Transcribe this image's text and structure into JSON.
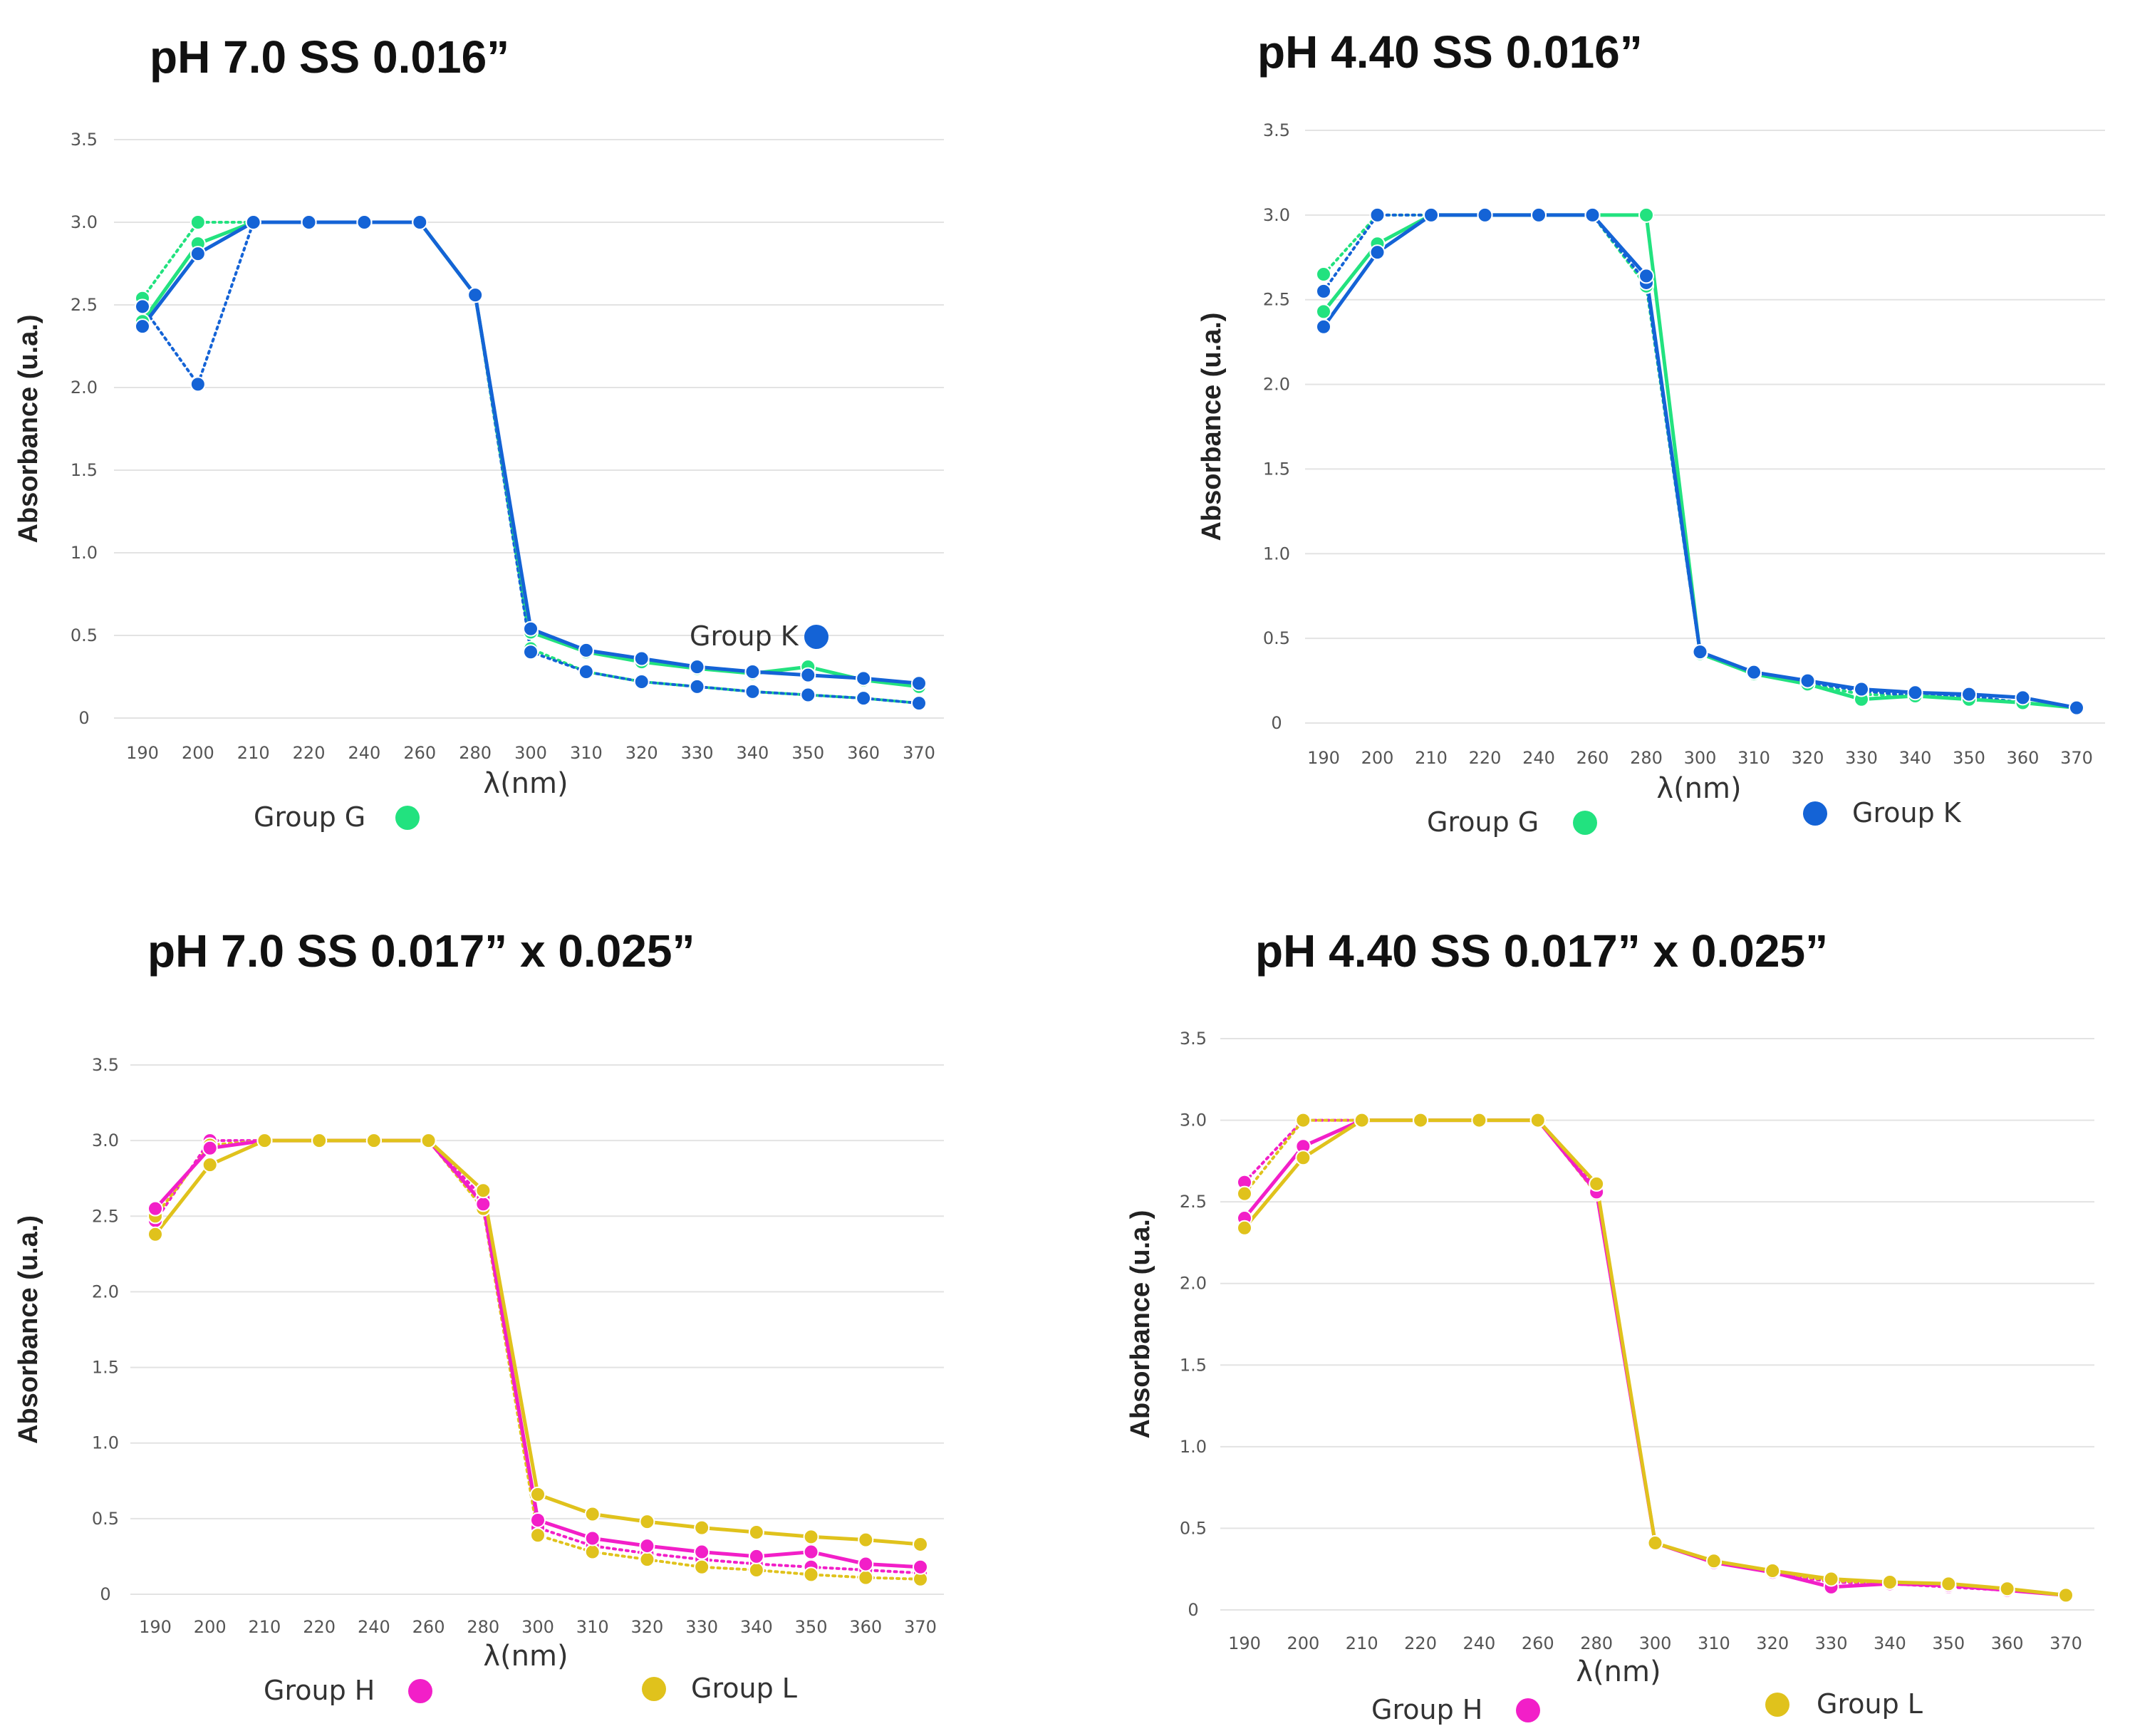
{
  "chart_data": [
    {
      "type": "line",
      "title": "pH 7.0 SS 0.016”",
      "xlabel": "λ(nm)",
      "ylabel": "Absorbance (u.a.)",
      "ylim": [
        0,
        3.5
      ],
      "y_ticks": [
        "0",
        "0.5",
        "1.0",
        "1.5",
        "2.0",
        "2.5",
        "3.0",
        "3.5"
      ],
      "categories": [
        "190",
        "200",
        "210",
        "220",
        "240",
        "260",
        "280",
        "300",
        "310",
        "320",
        "330",
        "340",
        "350",
        "360",
        "370"
      ],
      "legend": [
        {
          "label": "Group G",
          "color": "#22e27f"
        },
        {
          "label": "Group K",
          "color": "#1463d6"
        }
      ],
      "series": [
        {
          "name": "Group G",
          "style": "solid",
          "color": "#22e27f",
          "values": [
            2.4,
            2.87,
            3.0,
            3.0,
            3.0,
            3.0,
            2.56,
            0.52,
            0.4,
            0.34,
            0.3,
            0.27,
            0.31,
            0.23,
            0.19
          ]
        },
        {
          "name": "Group G",
          "style": "dotted",
          "color": "#22e27f",
          "values": [
            2.54,
            3.0,
            3.0,
            3.0,
            3.0,
            3.0,
            2.56,
            0.42,
            0.28,
            0.22,
            0.19,
            0.16,
            0.14,
            0.12,
            0.09
          ]
        },
        {
          "name": "Group K",
          "style": "solid",
          "color": "#1463d6",
          "values": [
            2.37,
            2.81,
            3.0,
            3.0,
            3.0,
            3.0,
            2.56,
            0.54,
            0.41,
            0.36,
            0.31,
            0.28,
            0.26,
            0.24,
            0.21
          ]
        },
        {
          "name": "Group K",
          "style": "dotted",
          "color": "#1463d6",
          "values": [
            2.49,
            2.02,
            3.0,
            3.0,
            3.0,
            3.0,
            2.56,
            0.4,
            0.28,
            0.22,
            0.19,
            0.16,
            0.14,
            0.12,
            0.09
          ]
        }
      ]
    },
    {
      "type": "line",
      "title": "pH 4.40 SS 0.016”",
      "xlabel": "λ(nm)",
      "ylabel": "Absorbance (u.a.)",
      "ylim": [
        0,
        3.5
      ],
      "y_ticks": [
        "0",
        "0.5",
        "1.0",
        "1.5",
        "2.0",
        "2.5",
        "3.0",
        "3.5"
      ],
      "categories": [
        "190",
        "200",
        "210",
        "220",
        "240",
        "260",
        "280",
        "300",
        "310",
        "320",
        "330",
        "340",
        "350",
        "360",
        "370"
      ],
      "legend": [
        {
          "label": "Group G",
          "color": "#22e27f"
        },
        {
          "label": "Group K",
          "color": "#1463d6"
        }
      ],
      "series": [
        {
          "name": "Group G",
          "style": "solid",
          "color": "#22e27f",
          "values": [
            2.43,
            2.83,
            3.0,
            3.0,
            3.0,
            3.0,
            3.0,
            0.41,
            0.29,
            0.23,
            0.14,
            0.16,
            0.14,
            0.12,
            0.09
          ]
        },
        {
          "name": "Group G",
          "style": "dotted",
          "color": "#22e27f",
          "values": [
            2.65,
            3.0,
            3.0,
            3.0,
            3.0,
            3.0,
            2.58,
            0.41,
            0.29,
            0.23,
            0.17,
            0.16,
            0.14,
            0.12,
            0.09
          ]
        },
        {
          "name": "Group K",
          "style": "solid",
          "color": "#1463d6",
          "values": [
            2.34,
            2.78,
            3.0,
            3.0,
            3.0,
            3.0,
            2.64,
            0.42,
            0.3,
            0.25,
            0.2,
            0.18,
            0.17,
            0.15,
            0.09
          ]
        },
        {
          "name": "Group K",
          "style": "dotted",
          "color": "#1463d6",
          "values": [
            2.55,
            3.0,
            3.0,
            3.0,
            3.0,
            3.0,
            2.6,
            0.41,
            0.29,
            0.24,
            0.19,
            0.16,
            0.16,
            0.12,
            0.09
          ]
        }
      ]
    },
    {
      "type": "line",
      "title": "pH 7.0 SS 0.017” x 0.025”",
      "xlabel": "λ(nm)",
      "ylabel": "Absorbance (u.a.)",
      "ylim": [
        0,
        3.5
      ],
      "y_ticks": [
        "0",
        "0.5",
        "1.0",
        "1.5",
        "2.0",
        "2.5",
        "3.0",
        "3.5"
      ],
      "categories": [
        "190",
        "200",
        "210",
        "220",
        "240",
        "260",
        "280",
        "300",
        "310",
        "320",
        "330",
        "340",
        "350",
        "360",
        "370"
      ],
      "legend": [
        {
          "label": "Group H",
          "color": "#f21fc8"
        },
        {
          "label": "Group L",
          "color": "#e0c21c"
        }
      ],
      "series": [
        {
          "name": "Group H",
          "style": "solid",
          "color": "#f21fc8",
          "values": [
            2.55,
            2.95,
            3.0,
            3.0,
            3.0,
            3.0,
            2.58,
            0.49,
            0.37,
            0.32,
            0.28,
            0.25,
            0.28,
            0.2,
            0.18
          ]
        },
        {
          "name": "Group H",
          "style": "dotted",
          "color": "#f21fc8",
          "values": [
            2.47,
            3.0,
            3.0,
            3.0,
            3.0,
            3.0,
            2.62,
            0.44,
            0.32,
            0.27,
            0.23,
            0.2,
            0.18,
            0.16,
            0.14
          ]
        },
        {
          "name": "Group L",
          "style": "solid",
          "color": "#e0c21c",
          "values": [
            2.38,
            2.84,
            3.0,
            3.0,
            3.0,
            3.0,
            2.67,
            0.66,
            0.53,
            0.48,
            0.44,
            0.41,
            0.38,
            0.36,
            0.33
          ]
        },
        {
          "name": "Group L",
          "style": "dotted",
          "color": "#e0c21c",
          "values": [
            2.5,
            2.97,
            3.0,
            3.0,
            3.0,
            3.0,
            2.55,
            0.39,
            0.28,
            0.23,
            0.18,
            0.16,
            0.13,
            0.11,
            0.1
          ]
        }
      ]
    },
    {
      "type": "line",
      "title": "pH 4.40 SS 0.017” x 0.025”",
      "xlabel": "λ(nm)",
      "ylabel": "Absorbance (u.a.)",
      "ylim": [
        0,
        3.5
      ],
      "y_ticks": [
        "0",
        "0.5",
        "1.0",
        "1.5",
        "2.0",
        "2.5",
        "3.0",
        "3.5"
      ],
      "categories": [
        "190",
        "200",
        "210",
        "220",
        "240",
        "260",
        "280",
        "300",
        "310",
        "320",
        "330",
        "340",
        "350",
        "360",
        "370"
      ],
      "legend": [
        {
          "label": "Group H",
          "color": "#f21fc8"
        },
        {
          "label": "Group L",
          "color": "#e0c21c"
        }
      ],
      "series": [
        {
          "name": "Group H",
          "style": "solid",
          "color": "#f21fc8",
          "values": [
            2.4,
            2.84,
            3.0,
            3.0,
            3.0,
            3.0,
            2.56,
            0.41,
            0.29,
            0.23,
            0.14,
            0.16,
            0.15,
            0.12,
            0.09
          ]
        },
        {
          "name": "Group H",
          "style": "dotted",
          "color": "#f21fc8",
          "values": [
            2.62,
            3.0,
            3.0,
            3.0,
            3.0,
            3.0,
            2.58,
            0.41,
            0.29,
            0.23,
            0.17,
            0.16,
            0.14,
            0.12,
            0.09
          ]
        },
        {
          "name": "Group L",
          "style": "solid",
          "color": "#e0c21c",
          "values": [
            2.34,
            2.77,
            3.0,
            3.0,
            3.0,
            3.0,
            2.61,
            0.41,
            0.3,
            0.24,
            0.19,
            0.17,
            0.16,
            0.13,
            0.09
          ]
        },
        {
          "name": "Group L",
          "style": "dotted",
          "color": "#e0c21c",
          "values": [
            2.55,
            3.0,
            3.0,
            3.0,
            3.0,
            3.0,
            2.55,
            0.41,
            0.29,
            0.23,
            0.18,
            0.16,
            0.15,
            0.12,
            0.09
          ]
        }
      ]
    }
  ]
}
